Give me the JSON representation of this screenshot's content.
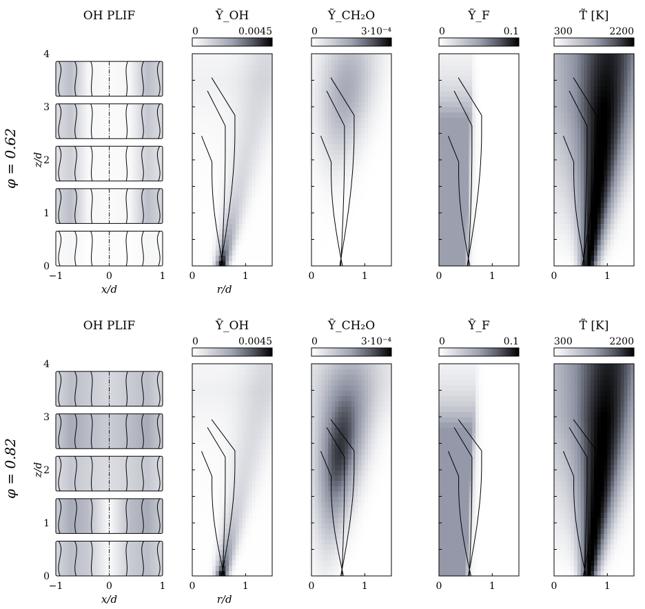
{
  "chart_data": {
    "type": "heatmap",
    "rows": [
      {
        "row_label": "φ = 0.62",
        "panels": [
          {
            "title": "OH PLIF",
            "kind": "plif",
            "xlabel": "x/d",
            "ylabel": "z/d",
            "xlim": [
              -1,
              1
            ],
            "ylim": [
              0,
              4
            ],
            "x_ticks": [
              "−1",
              "0",
              "1"
            ],
            "y_ticks": [
              "0",
              "1",
              "2",
              "3",
              "4"
            ]
          },
          {
            "title": "Ỹ_OH",
            "kind": "field",
            "field": "OH",
            "xlabel": "r/d",
            "colorbar": {
              "min_label": "0",
              "max_label": "0.0045",
              "min": 0,
              "max": 0.0045,
              "color": "#000000"
            },
            "xlim": [
              0,
              1.5
            ],
            "ylim": [
              0,
              4
            ],
            "x_ticks": [
              "0",
              "1"
            ]
          },
          {
            "title": "Ỹ_CH₂O",
            "kind": "field",
            "field": "CH2O",
            "xlabel": "",
            "colorbar": {
              "min_label": "0",
              "max_label": "3·10⁻⁴",
              "min": 0,
              "max": 0.0003,
              "color": "#000000"
            },
            "xlim": [
              0,
              1.5
            ],
            "ylim": [
              0,
              4
            ],
            "x_ticks": [
              "0",
              "1"
            ]
          },
          {
            "title": "Ỹ_F",
            "kind": "field",
            "field": "F",
            "xlabel": "",
            "colorbar": {
              "min_label": "0",
              "max_label": "0.1",
              "min": 0,
              "max": 0.1,
              "color": "#000000"
            },
            "xlim": [
              0,
              1.5
            ],
            "ylim": [
              0,
              4
            ],
            "x_ticks": [
              "0",
              "1"
            ]
          },
          {
            "title": "T̃ [K]",
            "kind": "field",
            "field": "T",
            "xlabel": "",
            "colorbar": {
              "min_label": "300",
              "max_label": "2200",
              "min": 300,
              "max": 2200,
              "color": "#000000"
            },
            "xlim": [
              0,
              1.5
            ],
            "ylim": [
              0,
              4
            ],
            "x_ticks": [
              "0",
              "1"
            ]
          }
        ]
      },
      {
        "row_label": "φ = 0.82",
        "panels": [
          {
            "title": "OH PLIF",
            "kind": "plif",
            "xlabel": "x/d",
            "ylabel": "z/d",
            "xlim": [
              -1,
              1
            ],
            "ylim": [
              0,
              4
            ],
            "x_ticks": [
              "−1",
              "0",
              "1"
            ],
            "y_ticks": [
              "0",
              "1",
              "2",
              "3",
              "4"
            ]
          },
          {
            "title": "Ỹ_OH",
            "kind": "field",
            "field": "OH",
            "xlabel": "r/d",
            "colorbar": {
              "min_label": "0",
              "max_label": "0.0045",
              "min": 0,
              "max": 0.0045,
              "color": "#000000"
            },
            "xlim": [
              0,
              1.5
            ],
            "ylim": [
              0,
              4
            ],
            "x_ticks": [
              "0",
              "1"
            ]
          },
          {
            "title": "Ỹ_CH₂O",
            "kind": "field",
            "field": "CH2O",
            "xlabel": "",
            "colorbar": {
              "min_label": "0",
              "max_label": "3·10⁻⁴",
              "min": 0,
              "max": 0.0003,
              "color": "#000000"
            },
            "xlim": [
              0,
              1.5
            ],
            "ylim": [
              0,
              4
            ],
            "x_ticks": [
              "0",
              "1"
            ]
          },
          {
            "title": "Ỹ_F",
            "kind": "field",
            "field": "F",
            "xlabel": "",
            "colorbar": {
              "min_label": "0",
              "max_label": "0.1",
              "min": 0,
              "max": 0.1,
              "color": "#000000"
            },
            "xlim": [
              0,
              1.5
            ],
            "ylim": [
              0,
              4
            ],
            "x_ticks": [
              "0",
              "1"
            ]
          },
          {
            "title": "T̃ [K]",
            "kind": "field",
            "field": "T",
            "xlabel": "",
            "colorbar": {
              "min_label": "300",
              "max_label": "2200",
              "min": 300,
              "max": 2200,
              "color": "#000000"
            },
            "xlim": [
              0,
              1.5
            ],
            "ylim": [
              0,
              4
            ],
            "x_ticks": [
              "0",
              "1"
            ]
          }
        ]
      }
    ]
  },
  "colors": {
    "colormap_low": "#ffffff",
    "colormap_mid": "#8a8fa0",
    "colormap_high": "#000000"
  }
}
